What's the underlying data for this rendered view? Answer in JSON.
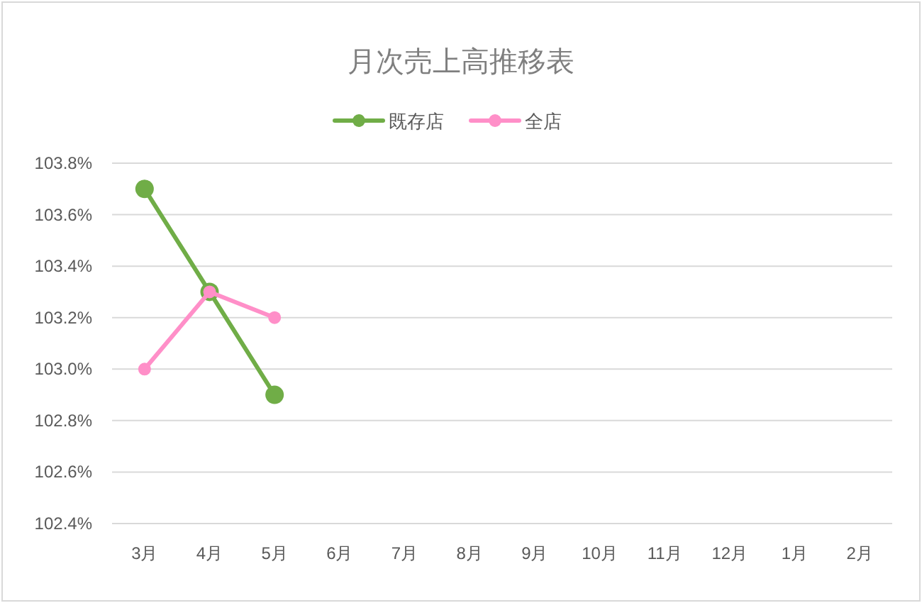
{
  "chart_data": {
    "type": "line",
    "title": "月次売上高推移表",
    "categories": [
      "3月",
      "4月",
      "5月",
      "6月",
      "7月",
      "8月",
      "9月",
      "10月",
      "11月",
      "12月",
      "1月",
      "2月"
    ],
    "series": [
      {
        "name": "既存店",
        "color": "#70ad47",
        "values": [
          103.7,
          103.3,
          102.9,
          null,
          null,
          null,
          null,
          null,
          null,
          null,
          null,
          null
        ]
      },
      {
        "name": "全店",
        "color": "#ff8fc8",
        "values": [
          103.0,
          103.3,
          103.2,
          null,
          null,
          null,
          null,
          null,
          null,
          null,
          null,
          null
        ]
      }
    ],
    "ylim": [
      102.4,
      103.8
    ],
    "yticks": [
      {
        "value": 102.4,
        "label": "102.4%"
      },
      {
        "value": 102.6,
        "label": "102.6%"
      },
      {
        "value": 102.8,
        "label": "102.8%"
      },
      {
        "value": 103.0,
        "label": "103.0%"
      },
      {
        "value": 103.2,
        "label": "103.2%"
      },
      {
        "value": 103.4,
        "label": "103.4%"
      },
      {
        "value": 103.6,
        "label": "103.6%"
      },
      {
        "value": 103.8,
        "label": "103.8%"
      }
    ],
    "grid": "y",
    "legend": "top",
    "marker": "circle",
    "line_style": "solid"
  }
}
